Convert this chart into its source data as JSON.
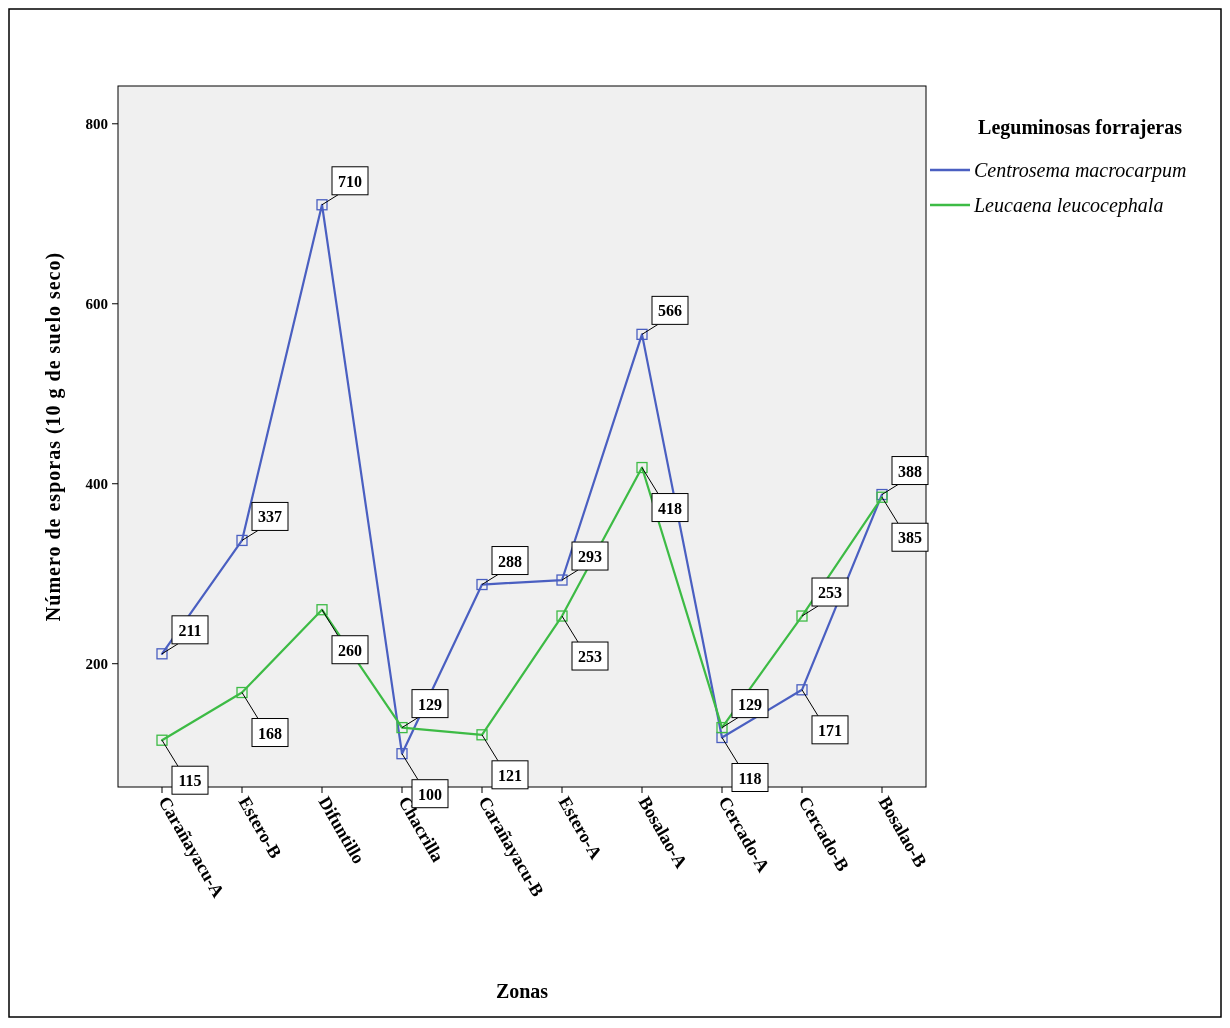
{
  "chart_data": {
    "type": "line",
    "xlabel": "Zonas",
    "ylabel": "Número de esporas (10 g de suelo seco)",
    "legend_title": "Leguminosas forrajeras",
    "categories": [
      "Carañayacu-A",
      "Estero-B",
      "Difuntillo",
      "Chacrilla",
      "Carañayacu-B",
      "Estero-A",
      "Bosalao-A",
      "Cercado-A",
      "Cercado-B",
      "Bosalao-B"
    ],
    "series": [
      {
        "name": "Centrosema macrocarpum",
        "color": "#4a5fc1",
        "values": [
          211,
          337,
          710,
          100,
          288,
          293,
          566,
          118,
          171,
          388
        ]
      },
      {
        "name": "Leucaena leucocephala",
        "color": "#3dbb45",
        "values": [
          115,
          168,
          260,
          129,
          121,
          253,
          418,
          129,
          253,
          385
        ]
      }
    ],
    "ylim": [
      63,
      842
    ],
    "yticks": [
      200,
      400,
      600,
      800
    ],
    "grid": false,
    "legend": "right",
    "marker": "square",
    "line_style": "solid",
    "data_labels": true
  }
}
